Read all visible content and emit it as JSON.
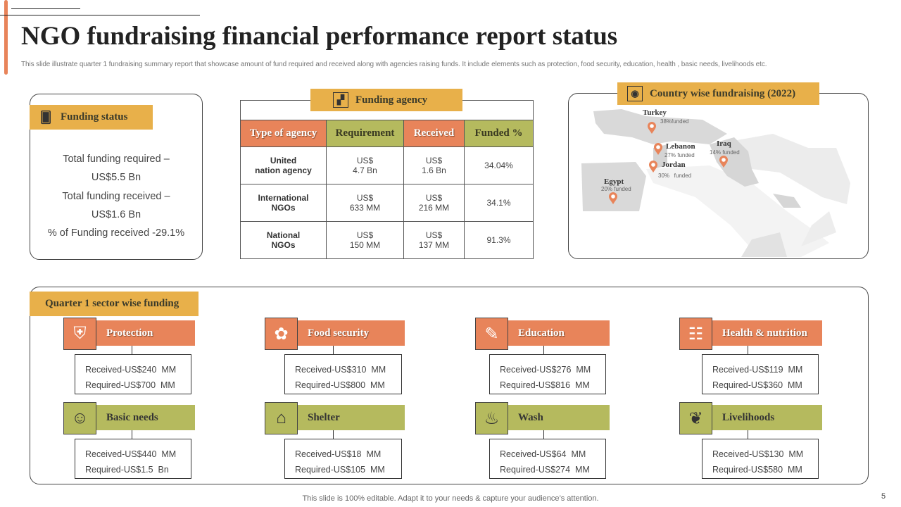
{
  "title": "NGO fundraising financial performance report status",
  "subtitle": "This slide illustrate quarter 1 fundraising summary report that showcase amount of fund required and received along with agencies raising funds. It include elements such as protection, food security, education, health , basic needs, livelihoods etc.",
  "colors": {
    "accent": "#E8845A",
    "olive": "#B5BA5E",
    "gold": "#E8B04A"
  },
  "funding_status": {
    "label": "Funding  status",
    "icon": "hand-money-icon",
    "lines": [
      "Total funding required –",
      "US$5.5 Bn",
      "Total funding received –",
      "US$1.6 Bn",
      "% of Funding received -29.1%"
    ]
  },
  "funding_agency": {
    "label": "Funding  agency",
    "icon": "agency-icon",
    "headers": [
      "Type of agency",
      "Requirement",
      "Received",
      "Funded  %"
    ],
    "rows": [
      {
        "type": "United\nnation agency",
        "requirement": "US$\n4.7 Bn",
        "received": "US$\n1.6 Bn",
        "funded": "34.04%"
      },
      {
        "type": "International\nNGOs",
        "requirement": "US$\n633 MM",
        "received": "US$\n216 MM",
        "funded": "34.1%"
      },
      {
        "type": "National\nNGOs",
        "requirement": "US$\n150 MM",
        "received": "US$\n137 MM",
        "funded": "91.3%"
      }
    ]
  },
  "country": {
    "label": "Country  wise fundraising  (2022)",
    "icon": "globe-icon",
    "countries": [
      {
        "name": "Turkey",
        "funded": "38%funded"
      },
      {
        "name": "Lebanon",
        "funded": "27% funded"
      },
      {
        "name": "Jordan",
        "funded": "30%   funded"
      },
      {
        "name": "Iraq",
        "funded": "14% funded"
      },
      {
        "name": "Egypt",
        "funded": "20% funded"
      }
    ]
  },
  "sectors": {
    "label": "Quarter  1 sector wise funding",
    "items": [
      {
        "name": "Protection",
        "icon": "shield-icon",
        "color": "orange",
        "received": "Received-US$240  MM",
        "required": "Required-US$700  MM"
      },
      {
        "name": "Food security",
        "icon": "food-icon",
        "color": "orange",
        "received": "Received-US$310  MM",
        "required": "Required-US$800  MM"
      },
      {
        "name": "Education",
        "icon": "teacher-icon",
        "color": "orange",
        "received": "Received-US$276  MM",
        "required": "Required-US$816  MM"
      },
      {
        "name": "Health & nutrition",
        "icon": "clipboard-icon",
        "color": "orange",
        "received": "Received-US$119  MM",
        "required": "Required-US$360  MM"
      },
      {
        "name": "Basic needs",
        "icon": "community-icon",
        "color": "olive",
        "received": "Received-US$440  MM",
        "required": "Required-US$1.5  Bn"
      },
      {
        "name": "Shelter",
        "icon": "house-icon",
        "color": "olive",
        "received": "Received-US$18  MM",
        "required": "Required-US$105  MM"
      },
      {
        "name": "Wash",
        "icon": "washing-icon",
        "color": "olive",
        "received": "Received-US$64  MM",
        "required": "Required-US$274  MM"
      },
      {
        "name": "Livelihoods",
        "icon": "plant-money-icon",
        "color": "olive",
        "received": "Received-US$130  MM",
        "required": "Required-US$580  MM"
      }
    ]
  },
  "footer": "This slide is 100% editable. Adapt it to your needs & capture your audience’s attention.",
  "page_number": "5"
}
